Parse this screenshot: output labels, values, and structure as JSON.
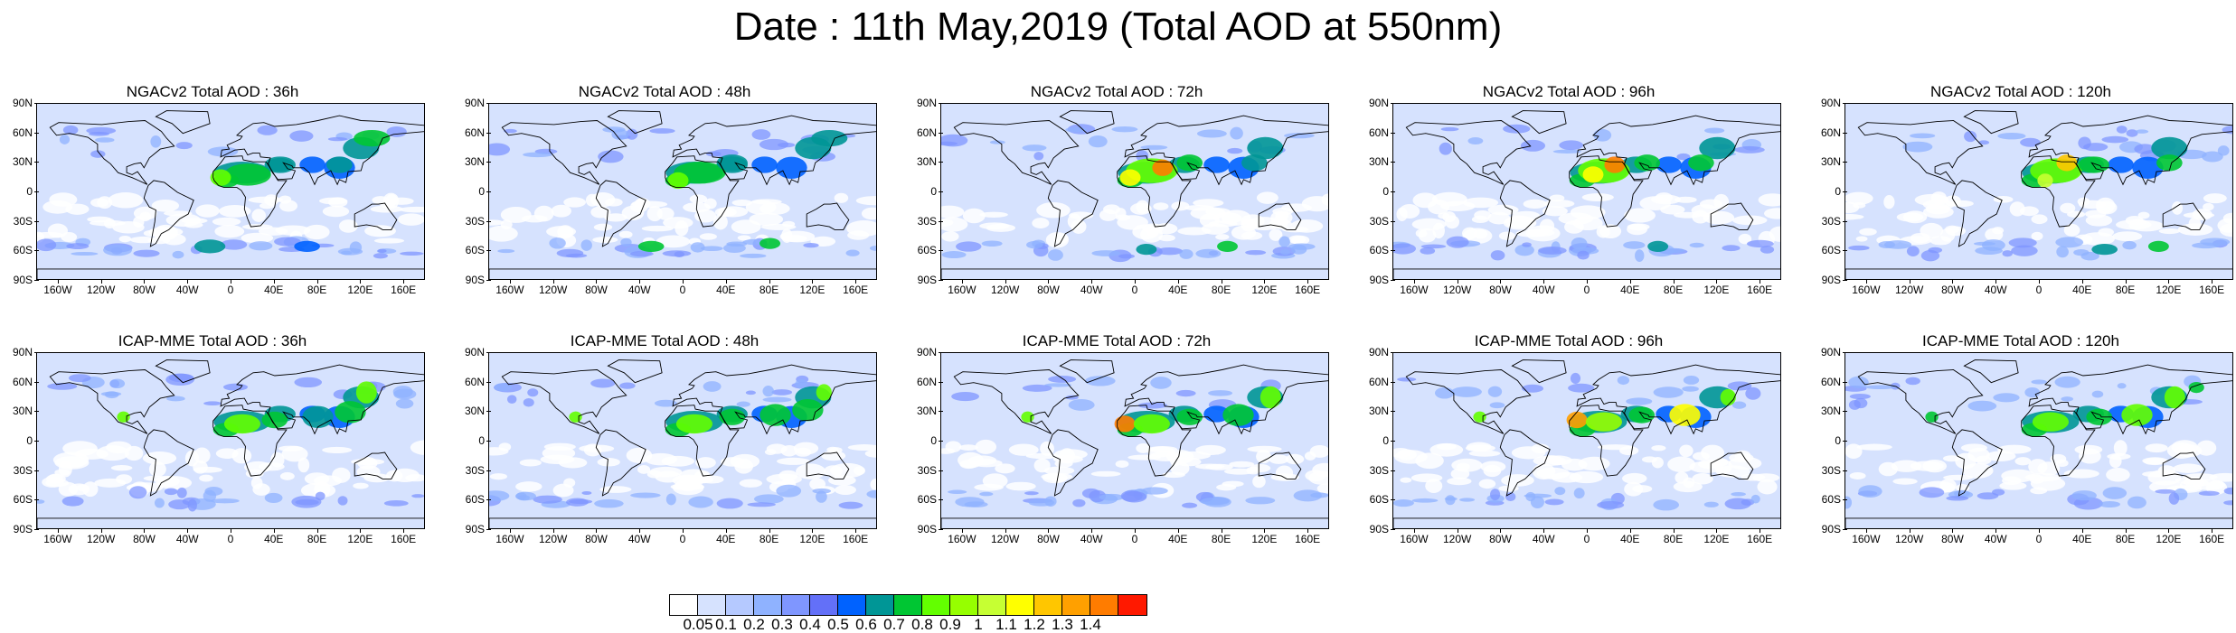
{
  "title": "Date : 11th May,2019 (Total AOD at 550nm)",
  "panels": [
    {
      "label": "NGACv2 Total AOD : 36h",
      "model": "NGACv2",
      "lead": "36h"
    },
    {
      "label": "NGACv2 Total AOD : 48h",
      "model": "NGACv2",
      "lead": "48h"
    },
    {
      "label": "NGACv2 Total AOD : 72h",
      "model": "NGACv2",
      "lead": "72h"
    },
    {
      "label": "NGACv2 Total AOD : 96h",
      "model": "NGACv2",
      "lead": "96h"
    },
    {
      "label": "NGACv2 Total AOD : 120h",
      "model": "NGACv2",
      "lead": "120h"
    },
    {
      "label": "ICAP-MME Total AOD : 36h",
      "model": "ICAP-MME",
      "lead": "36h"
    },
    {
      "label": "ICAP-MME Total AOD : 48h",
      "model": "ICAP-MME",
      "lead": "48h"
    },
    {
      "label": "ICAP-MME Total AOD : 72h",
      "model": "ICAP-MME",
      "lead": "72h"
    },
    {
      "label": "ICAP-MME Total AOD : 96h",
      "model": "ICAP-MME",
      "lead": "96h"
    },
    {
      "label": "ICAP-MME Total AOD : 120h",
      "model": "ICAP-MME",
      "lead": "120h"
    }
  ],
  "lat_labels": [
    "90N",
    "60N",
    "30N",
    "0",
    "30S",
    "60S",
    "90S"
  ],
  "lat_values": [
    90,
    60,
    30,
    0,
    -30,
    -60,
    -90
  ],
  "lon_labels": [
    "160W",
    "120W",
    "80W",
    "40W",
    "0",
    "40E",
    "80E",
    "120E",
    "160E"
  ],
  "lon_values": [
    -160,
    -120,
    -80,
    -40,
    0,
    40,
    80,
    120,
    160
  ],
  "colorbar": {
    "colors": [
      "#ffffff",
      "#d6e2fe",
      "#b5c9ff",
      "#8fb2ff",
      "#7f96ff",
      "#6370f8",
      "#0062ff",
      "#009696",
      "#00c633",
      "#63ff00",
      "#96ff00",
      "#c6ff33",
      "#ffff00",
      "#ffc600",
      "#ffa000",
      "#ff7c00",
      "#ff1900"
    ],
    "labels": [
      "0.05",
      "0.1",
      "0.2",
      "0.3",
      "0.4",
      "0.5",
      "0.6",
      "0.7",
      "0.8",
      "0.9",
      "1",
      "1.1",
      "1.2",
      "1.3",
      "1.4"
    ]
  }
}
